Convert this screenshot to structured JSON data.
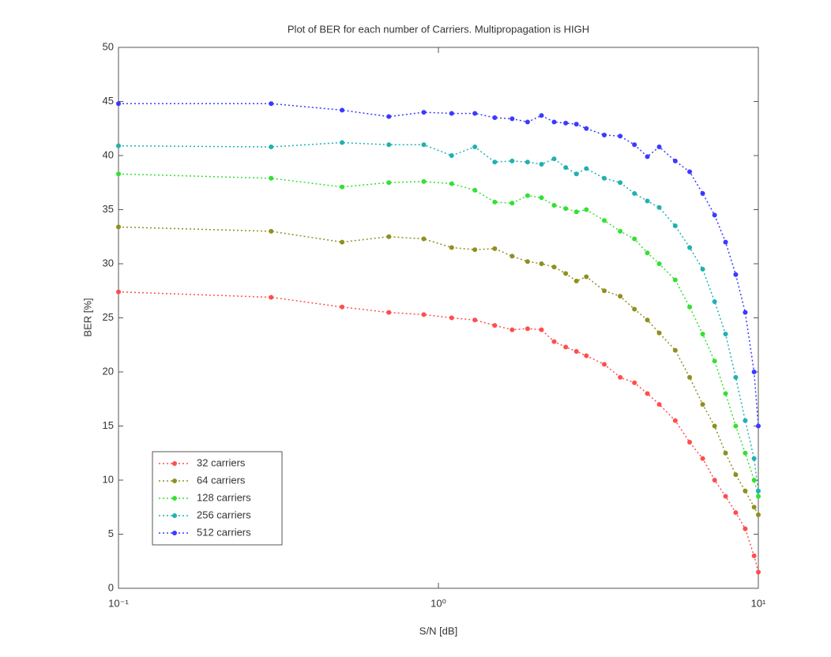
{
  "chart_data": {
    "type": "line",
    "title": "Plot of BER for each number of Carriers.  Multipropagation is HIGH",
    "xlabel": "S/N [dB]",
    "ylabel": "BER [%]",
    "xscale": "log",
    "xlim": [
      0.1,
      10
    ],
    "ylim": [
      0,
      50
    ],
    "xticks": [
      {
        "value": 0.1,
        "label": "10⁻¹"
      },
      {
        "value": 1,
        "label": "10⁰"
      },
      {
        "value": 10,
        "label": "10¹"
      }
    ],
    "yticks": [
      0,
      5,
      10,
      15,
      20,
      25,
      30,
      35,
      40,
      45,
      50
    ],
    "grid": false,
    "legend": "lower left",
    "x": [
      0.1,
      0.3,
      0.5,
      0.7,
      0.9,
      1.1,
      1.3,
      1.5,
      1.7,
      1.9,
      2.1,
      2.3,
      2.5,
      2.7,
      2.9,
      3.3,
      3.7,
      4.1,
      4.5,
      4.9,
      5.5,
      6.1,
      6.7,
      7.3,
      7.9,
      8.5,
      9.1,
      9.7,
      10
    ],
    "series": [
      {
        "name": "32 carriers",
        "color": "#ff4d4d",
        "values": [
          27.4,
          26.9,
          26.0,
          25.5,
          25.3,
          25.0,
          24.8,
          24.3,
          23.9,
          24.0,
          23.9,
          22.8,
          22.3,
          21.9,
          21.5,
          20.7,
          19.5,
          19.0,
          18.0,
          17.0,
          15.5,
          13.5,
          12.0,
          10.0,
          8.5,
          7.0,
          5.5,
          3.0,
          1.5
        ]
      },
      {
        "name": "64 carriers",
        "color": "#8f8f1f",
        "values": [
          33.4,
          33.0,
          32.0,
          32.5,
          32.3,
          31.5,
          31.3,
          31.4,
          30.7,
          30.2,
          30.0,
          29.7,
          29.1,
          28.4,
          28.8,
          27.5,
          27.0,
          25.8,
          24.8,
          23.6,
          22.0,
          19.5,
          17.0,
          15.0,
          12.5,
          10.5,
          9.0,
          7.5,
          6.8
        ]
      },
      {
        "name": "128 carriers",
        "color": "#33e033",
        "values": [
          38.3,
          37.9,
          37.1,
          37.5,
          37.6,
          37.4,
          36.8,
          35.7,
          35.6,
          36.3,
          36.1,
          35.4,
          35.1,
          34.8,
          35.0,
          34.0,
          33.0,
          32.3,
          31.0,
          30.0,
          28.5,
          26.0,
          23.5,
          21.0,
          18.0,
          15.0,
          12.5,
          10.0,
          8.5
        ]
      },
      {
        "name": "256 carriers",
        "color": "#22b0b0",
        "values": [
          40.9,
          40.8,
          41.2,
          41.0,
          41.0,
          40.0,
          40.8,
          39.4,
          39.5,
          39.4,
          39.2,
          39.7,
          38.9,
          38.3,
          38.8,
          37.9,
          37.5,
          36.5,
          35.8,
          35.2,
          33.5,
          31.5,
          29.5,
          26.5,
          23.5,
          19.5,
          15.5,
          12.0,
          9.0
        ]
      },
      {
        "name": "512 carriers",
        "color": "#3a3aff",
        "values": [
          44.8,
          44.8,
          44.2,
          43.6,
          44.0,
          43.9,
          43.9,
          43.5,
          43.4,
          43.1,
          43.7,
          43.1,
          43.0,
          42.9,
          42.5,
          41.9,
          41.8,
          41.0,
          39.9,
          40.8,
          39.5,
          38.5,
          36.5,
          34.5,
          32.0,
          29.0,
          25.5,
          20.0,
          15.0
        ]
      }
    ]
  }
}
